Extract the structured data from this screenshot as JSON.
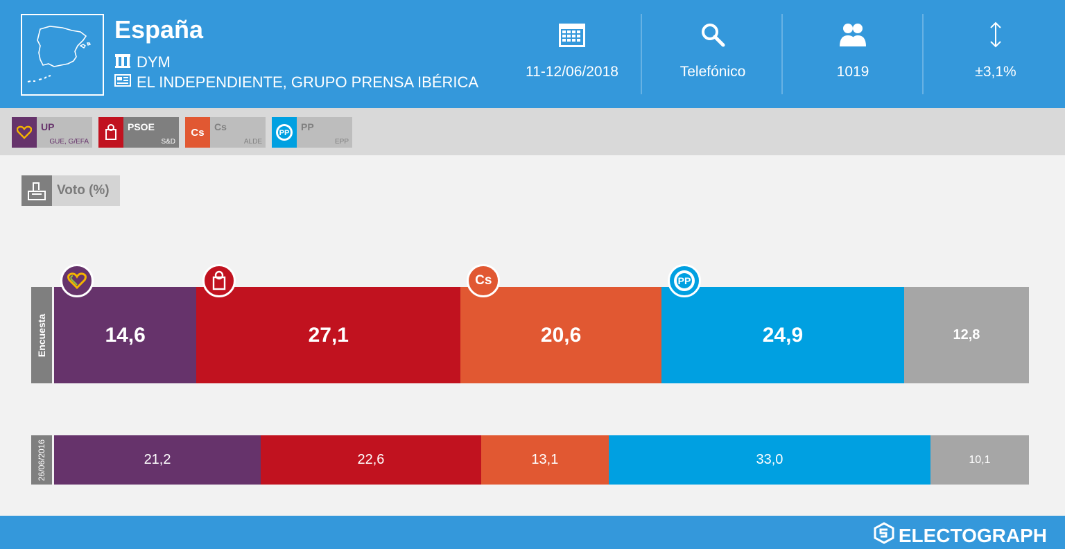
{
  "header": {
    "title": "España",
    "pollster": "DYM",
    "media": "EL INDEPENDIENTE, GRUPO PRENSA IBÉRICA",
    "stats": [
      {
        "icon": "calendar-icon",
        "value": "11-12/06/2018"
      },
      {
        "icon": "search-icon",
        "value": "Telefónico"
      },
      {
        "icon": "people-icon",
        "value": "1019"
      },
      {
        "icon": "updown-arrow-icon",
        "value": "±3,1%"
      }
    ]
  },
  "parties": [
    {
      "name": "UP",
      "group": "GUE, G/EFA",
      "color": "#66336b"
    },
    {
      "name": "PSOE",
      "group": "S&D",
      "color": "#c1121f"
    },
    {
      "name": "Cs",
      "group": "ALDE",
      "color": "#e15832"
    },
    {
      "name": "PP",
      "group": "EPP",
      "color": "#00a0e1"
    }
  ],
  "section": {
    "label": "Voto (%)"
  },
  "chart_data": {
    "type": "bar",
    "stacked": true,
    "orientation": "horizontal",
    "categories": [
      "UP",
      "PSOE",
      "Cs",
      "PP",
      ""
    ],
    "colors": [
      "#66336b",
      "#c1121f",
      "#e15832",
      "#00a0e1",
      "#a6a6a6"
    ],
    "series": [
      {
        "name": "Encuesta",
        "values": [
          14.6,
          27.1,
          20.6,
          24.9,
          12.8
        ],
        "labels": [
          "14,6",
          "27,1",
          "20,6",
          "24,9",
          "12,8"
        ]
      },
      {
        "name": "26/06/2016",
        "values": [
          21.2,
          22.6,
          13.1,
          33.0,
          10.1
        ],
        "labels": [
          "21,2",
          "22,6",
          "13,1",
          "33,0",
          "10,1"
        ]
      }
    ]
  },
  "footer": {
    "brand": "ELECTOGRAPH"
  }
}
